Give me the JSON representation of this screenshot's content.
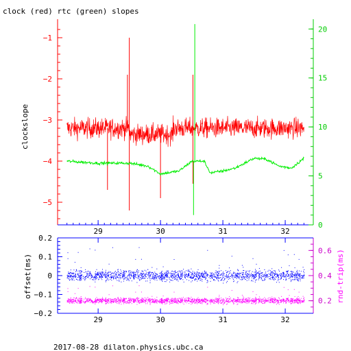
{
  "footer": "2017-08-28  dilaton.physics.ubc.ca",
  "colors": {
    "clock": "#ff0000",
    "rtc": "#00ee00",
    "offset": "#0000ff",
    "rndtrip": "#ff00ff",
    "axis_left_top": "#ff0000",
    "axis_right_top": "#00cc00",
    "axis_left_bottom": "#0000ff",
    "axis_right_bottom": "#cc00cc"
  },
  "chart_data": [
    {
      "type": "line",
      "title": "clock (red) rtc (green) slopes",
      "ylabel": "clockslope",
      "xlim": [
        28.35,
        32.45
      ],
      "ylim": [
        -5.55,
        -0.55
      ],
      "y2lim": [
        0,
        21
      ],
      "x_ticks": [
        29,
        30,
        31,
        32
      ],
      "y_ticks": [
        -1,
        -2,
        -3,
        -4,
        -5
      ],
      "y2_ticks": [
        0,
        5,
        10,
        15,
        20
      ],
      "series": [
        {
          "name": "clock",
          "axis": "left",
          "x_range": [
            28.5,
            32.3
          ],
          "baseline": -3.2,
          "noise": 0.25,
          "spikes": [
            {
              "x": 29.5,
              "y": -1.0
            },
            {
              "x": 29.47,
              "y": -1.9
            },
            {
              "x": 30.52,
              "y": -1.9
            },
            {
              "x": 29.5,
              "y": -5.2
            },
            {
              "x": 30.52,
              "y": -4.55
            },
            {
              "x": 30.0,
              "y": -4.9
            },
            {
              "x": 29.15,
              "y": -4.7
            }
          ]
        },
        {
          "name": "rtc",
          "axis": "right",
          "x_range": [
            28.5,
            32.3
          ],
          "points": [
            [
              28.5,
              6.5
            ],
            [
              29.0,
              6.3
            ],
            [
              29.5,
              6.3
            ],
            [
              29.8,
              6.0
            ],
            [
              30.0,
              5.2
            ],
            [
              30.3,
              5.5
            ],
            [
              30.5,
              6.5
            ],
            [
              30.7,
              6.5
            ],
            [
              30.8,
              5.3
            ],
            [
              31.0,
              5.5
            ],
            [
              31.2,
              5.8
            ],
            [
              31.5,
              6.8
            ],
            [
              31.7,
              6.7
            ],
            [
              31.9,
              6.0
            ],
            [
              32.1,
              5.8
            ],
            [
              32.3,
              6.8
            ]
          ],
          "spikes": [
            {
              "x": 30.55,
              "y": 20.5
            },
            {
              "x": 30.53,
              "y": 1.0
            }
          ]
        }
      ]
    },
    {
      "type": "scatter",
      "ylabel": "offset(ms)",
      "y2label": "rnd-trip(ms)",
      "xlim": [
        28.35,
        32.45
      ],
      "ylim": [
        -0.2,
        0.2
      ],
      "y2lim": [
        0.1,
        0.7
      ],
      "x_ticks": [
        29,
        30,
        31,
        32
      ],
      "y_ticks": [
        0.2,
        0.1,
        0,
        -0.1,
        -0.2
      ],
      "y_tick_labels": [
        "0.2",
        "0.1",
        "0",
        "−0.1",
        "−0.2"
      ],
      "y2_ticks": [
        0.2,
        0.4,
        0.6
      ],
      "series": [
        {
          "name": "offset",
          "axis": "left",
          "x_range": [
            28.5,
            32.3
          ],
          "center": 0.0,
          "spread": 0.05
        },
        {
          "name": "rnd-trip",
          "axis": "right",
          "x_range": [
            28.5,
            32.3
          ],
          "center": 0.2,
          "spread": 0.04
        }
      ]
    }
  ]
}
